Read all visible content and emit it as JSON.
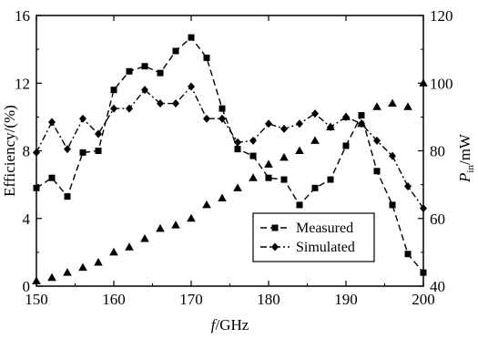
{
  "chart_data": {
    "type": "line",
    "x_label_italic": "f",
    "x_label_rest": "/GHz",
    "ylabel_left": "Efficiency/(%)",
    "ylabel_right_main": "P",
    "ylabel_right_sub": "in",
    "ylabel_right_rest": "/mW",
    "xlim": [
      150,
      200
    ],
    "ylim_left": [
      0,
      16
    ],
    "ylim_right": [
      40,
      120
    ],
    "x_ticks": [
      150,
      160,
      170,
      180,
      190,
      200
    ],
    "y_ticks_left": [
      0,
      4,
      8,
      12,
      16
    ],
    "y_ticks_right": [
      40,
      60,
      80,
      100,
      120
    ],
    "legend_position": "lower-right",
    "series": [
      {
        "name": "Measured",
        "axis": "left",
        "marker": "square",
        "x": [
          150,
          152,
          154,
          156,
          158,
          160,
          162,
          164,
          166,
          168,
          170,
          172,
          174,
          176,
          178,
          180,
          182,
          184,
          186,
          188,
          190,
          192,
          194,
          196,
          198,
          200
        ],
        "y": [
          5.8,
          6.4,
          5.3,
          7.9,
          8.0,
          11.6,
          12.7,
          13.0,
          12.6,
          13.9,
          14.7,
          13.5,
          10.5,
          8.1,
          7.7,
          6.4,
          6.3,
          4.8,
          5.8,
          6.3,
          8.3,
          10.1,
          6.8,
          4.8,
          1.9,
          0.8
        ]
      },
      {
        "name": "Simulated",
        "axis": "left",
        "marker": "diamond",
        "x": [
          150,
          152,
          154,
          156,
          158,
          160,
          162,
          164,
          166,
          168,
          170,
          172,
          174,
          176,
          178,
          180,
          182,
          184,
          186,
          188,
          190,
          192,
          194,
          196,
          198,
          200
        ],
        "y": [
          7.9,
          9.7,
          8.1,
          9.9,
          9.0,
          10.5,
          10.5,
          11.6,
          10.8,
          10.8,
          11.8,
          9.9,
          9.9,
          8.5,
          8.6,
          9.6,
          9.3,
          9.6,
          10.2,
          9.4,
          10.0,
          9.6,
          8.6,
          7.7,
          5.9,
          4.6
        ]
      },
      {
        "axis": "right",
        "marker": "triangle",
        "x": [
          150,
          152,
          154,
          156,
          158,
          160,
          162,
          164,
          166,
          168,
          170,
          172,
          174,
          176,
          178,
          180,
          182,
          184,
          186,
          188,
          190,
          192,
          194,
          196,
          198,
          200
        ],
        "y": [
          41.5,
          42.5,
          44,
          45.5,
          47,
          50,
          51.5,
          54,
          57,
          58,
          60,
          64,
          66,
          69,
          72,
          76,
          78,
          80,
          83,
          87,
          90,
          88,
          93,
          94,
          93,
          100
        ]
      }
    ]
  }
}
